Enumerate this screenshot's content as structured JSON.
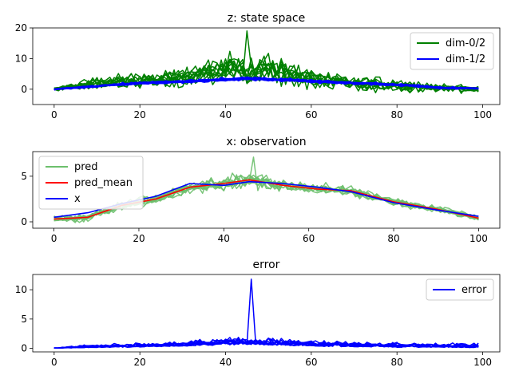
{
  "colors": {
    "green": "#008000",
    "blue": "#0000ff",
    "red": "#ff0000",
    "light_green": "#6cbf6c",
    "axis": "#000000"
  },
  "chart_data": [
    {
      "type": "line",
      "title": "z: state space",
      "xlim": [
        -5,
        104
      ],
      "ylim": [
        -5,
        20
      ],
      "xticks": [
        0,
        20,
        40,
        60,
        80,
        100
      ],
      "yticks": [
        0,
        10,
        20
      ],
      "xtick_labels": [
        "0",
        "20",
        "40",
        "60",
        "80",
        "100"
      ],
      "ytick_labels": [
        "0",
        "10",
        "20"
      ],
      "legend": {
        "placement": "top-right",
        "entries": [
          {
            "label": "dim-0/2",
            "color": "#008000"
          },
          {
            "label": "dim-1/2",
            "color": "#0000ff"
          }
        ]
      },
      "series": [
        {
          "name": "dim-0/2",
          "color": "#008000",
          "count": 10,
          "x": [
            0,
            10,
            20,
            30,
            38,
            46,
            54,
            62,
            70,
            80,
            90,
            99
          ],
          "center": [
            0,
            2,
            3,
            4,
            6,
            7,
            5,
            3,
            2,
            1,
            0.5,
            0
          ],
          "spread": [
            1,
            3,
            4,
            5,
            7,
            8,
            6,
            5,
            4,
            3,
            2,
            1.5
          ],
          "max": 19
        },
        {
          "name": "dim-1/2",
          "color": "#0000ff",
          "count": 10,
          "x": [
            0,
            10,
            20,
            30,
            38,
            46,
            54,
            62,
            70,
            80,
            90,
            99
          ],
          "center": [
            0,
            1,
            2,
            2.5,
            3,
            3.5,
            3,
            2.5,
            2,
            1.5,
            0.5,
            0.3
          ],
          "spread": [
            0.3,
            0.6,
            0.7,
            0.8,
            0.9,
            1,
            0.9,
            0.8,
            0.7,
            0.6,
            0.5,
            0.4
          ]
        }
      ]
    },
    {
      "type": "line",
      "title": "x: observation",
      "xlim": [
        -5,
        105
      ],
      "ylim": [
        -0.7,
        7.7
      ],
      "xticks": [
        0,
        20,
        40,
        60,
        80,
        100
      ],
      "yticks": [
        0,
        5
      ],
      "xtick_labels": [
        "0",
        "20",
        "40",
        "60",
        "80",
        "100"
      ],
      "ytick_labels": [
        "0",
        "5"
      ],
      "legend": {
        "placement": "top-left",
        "entries": [
          {
            "label": "pred",
            "color": "#6cbf6c"
          },
          {
            "label": "pred_mean",
            "color": "#ff0000"
          },
          {
            "label": "x",
            "color": "#0000ff"
          }
        ]
      },
      "series": [
        {
          "name": "pred",
          "color": "#6cbf6c",
          "count": 10,
          "x": [
            0,
            8,
            16,
            24,
            32,
            40,
            46,
            54,
            62,
            70,
            80,
            90,
            100
          ],
          "center": [
            0.3,
            0.5,
            1.8,
            2.5,
            3.8,
            4.2,
            4.6,
            4.0,
            3.6,
            3.4,
            2.2,
            1.4,
            0.4
          ],
          "spread": [
            0.5,
            0.7,
            0.8,
            0.8,
            0.9,
            1.1,
            1.4,
            1.0,
            0.8,
            0.8,
            0.7,
            0.6,
            0.5
          ],
          "max": 7.1
        },
        {
          "name": "pred_mean",
          "color": "#ff0000",
          "x": [
            0,
            8,
            16,
            24,
            32,
            40,
            46,
            54,
            62,
            70,
            80,
            90,
            100
          ],
          "y": [
            0.3,
            0.5,
            1.8,
            2.5,
            3.8,
            4.2,
            4.6,
            4.0,
            3.6,
            3.4,
            2.2,
            1.4,
            0.4
          ]
        },
        {
          "name": "x",
          "color": "#0000ff",
          "x": [
            0,
            8,
            16,
            24,
            32,
            40,
            46,
            54,
            62,
            70,
            80,
            90,
            100
          ],
          "y": [
            0.5,
            1.0,
            2.0,
            2.8,
            4.2,
            4.0,
            4.4,
            4.2,
            3.8,
            3.3,
            2.1,
            1.3,
            0.6
          ]
        }
      ]
    },
    {
      "type": "line",
      "title": "error",
      "xlim": [
        -5,
        104
      ],
      "ylim": [
        -0.6,
        12.6
      ],
      "xticks": [
        0,
        20,
        40,
        60,
        80,
        100
      ],
      "yticks": [
        0,
        5,
        10
      ],
      "xtick_labels": [
        "0",
        "20",
        "40",
        "60",
        "80",
        "100"
      ],
      "ytick_labels": [
        "0",
        "5",
        "10"
      ],
      "legend": {
        "placement": "top-right",
        "entries": [
          {
            "label": "error",
            "color": "#0000ff"
          }
        ]
      },
      "series": [
        {
          "name": "error",
          "color": "#0000ff",
          "count": 10,
          "x": [
            0,
            10,
            20,
            30,
            38,
            46,
            54,
            62,
            70,
            80,
            90,
            99
          ],
          "center": [
            0.05,
            0.3,
            0.4,
            0.6,
            0.9,
            1.0,
            0.8,
            0.6,
            0.5,
            0.4,
            0.4,
            0.3
          ],
          "spread": [
            0.05,
            0.5,
            0.6,
            0.8,
            1.2,
            1.2,
            1.1,
            0.9,
            0.8,
            0.7,
            0.7,
            0.6
          ],
          "max": 11.8
        }
      ]
    }
  ]
}
